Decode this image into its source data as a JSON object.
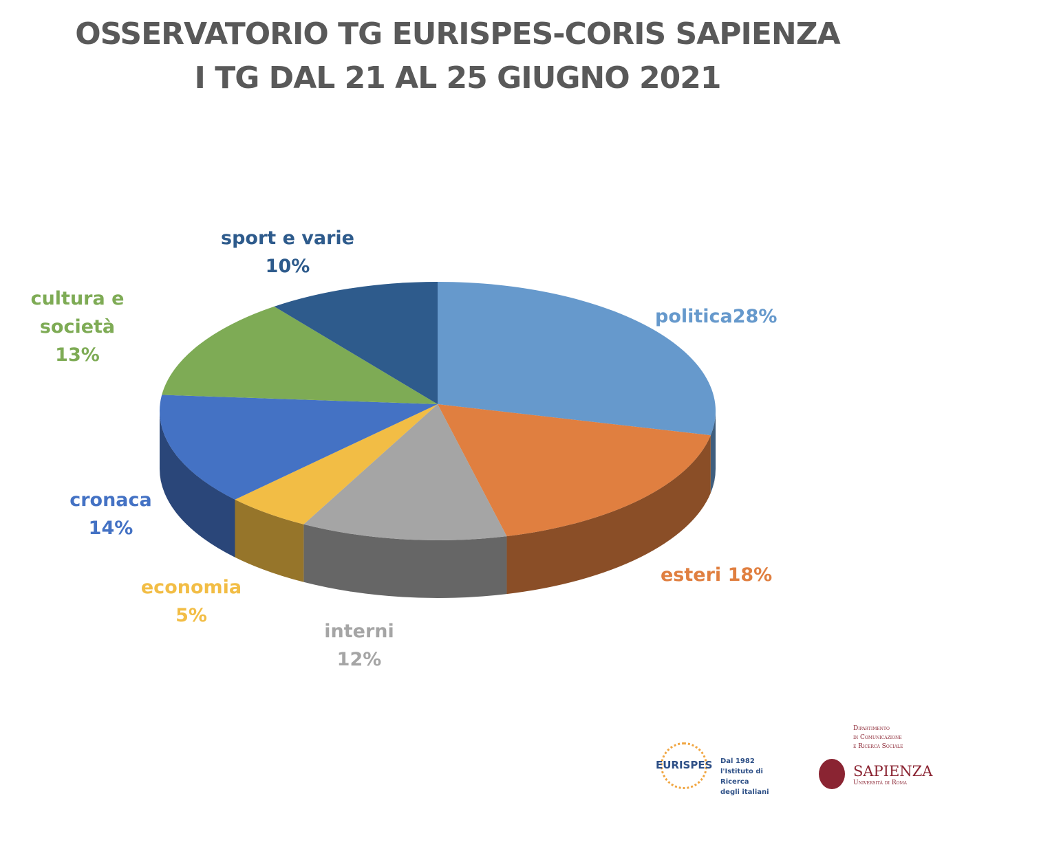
{
  "chart_data": {
    "type": "pie",
    "title": "OSSERVATORIO TG EURISPES-CORIS SAPIENZA",
    "subtitle": "I TG DAL 21 AL 25 GIUGNO 2021",
    "slices": [
      {
        "label": "politica",
        "pct_text": "28%",
        "value": 28,
        "color": "#6699cc"
      },
      {
        "label": "esteri",
        "pct_text": "18%",
        "value": 18,
        "color": "#e07f40"
      },
      {
        "label": "interni",
        "pct_text": "12%",
        "value": 12,
        "color": "#a5a5a5"
      },
      {
        "label": "economia",
        "pct_text": "5%",
        "value": 5,
        "color": "#f2bd45"
      },
      {
        "label": "cronaca",
        "pct_text": "14%",
        "value": 14,
        "color": "#4472c4"
      },
      {
        "label": "cultura e società",
        "pct_text": "13%",
        "value": 13,
        "color": "#7eab55"
      },
      {
        "label": "sport e varie",
        "pct_text": "10%",
        "value": 10,
        "color": "#2e5b8c"
      }
    ]
  },
  "logos": {
    "eurispes": {
      "name": "EURISPES",
      "tagline1": "Dal 1982",
      "tagline2": "l'Istituto di Ricerca",
      "tagline3": "degli italiani"
    },
    "sapienza": {
      "dept1": "Dipartimento",
      "dept2": "di Comunicazione",
      "dept3": "e Ricerca Sociale",
      "name": "SAPIENZA",
      "sub": "Università di Roma"
    }
  }
}
